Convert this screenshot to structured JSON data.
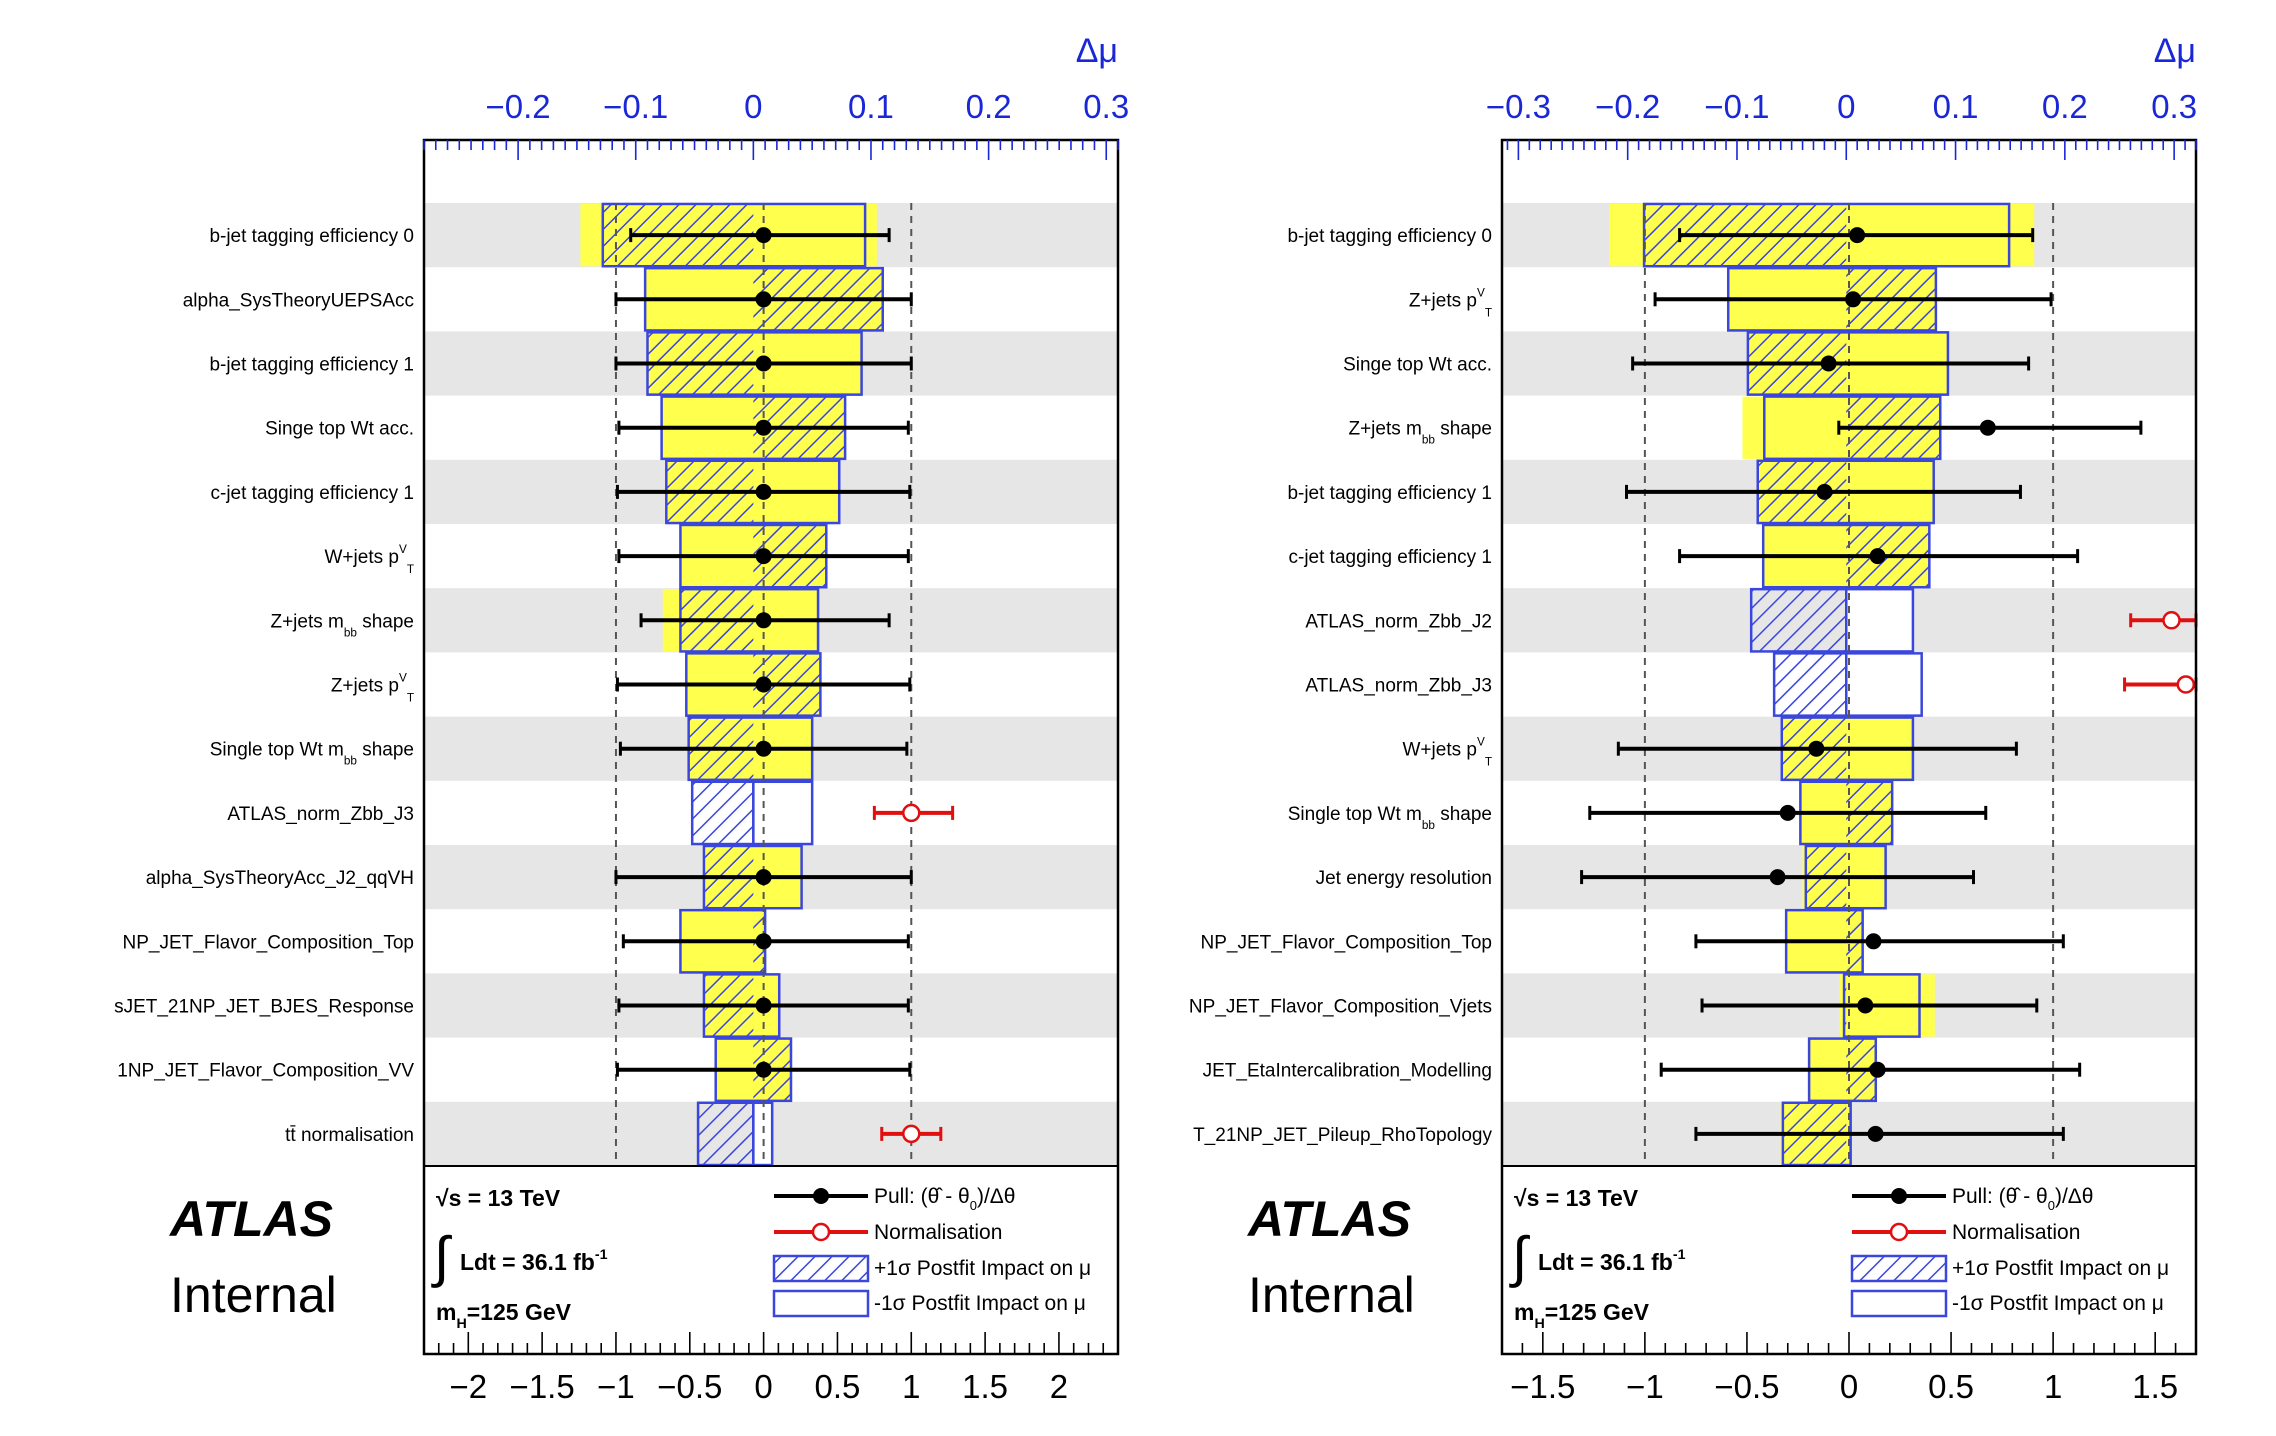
{
  "chart_data": [
    {
      "type": "ranking",
      "top_axis": {
        "label": "Δμ",
        "range": [
          -0.28,
          0.31
        ],
        "ticks": [
          -0.2,
          -0.1,
          0,
          0.1,
          0.2,
          0.3
        ],
        "tick_labels": [
          "−0.2",
          "−0.1",
          "0",
          "0.1",
          "0.2",
          "0.3"
        ],
        "color": "#1a27d6"
      },
      "bottom_axis": {
        "range": [
          -2.3,
          2.4
        ],
        "ticks": [
          -2,
          -1.5,
          -1,
          -0.5,
          0,
          0.5,
          1,
          1.5,
          2
        ],
        "tick_labels": [
          "−2",
          "−1.5",
          "−1",
          "−0.5",
          "0",
          "0.5",
          "1",
          "1.5",
          "2"
        ]
      },
      "parameters": [
        {
          "name": "b-jet tagging efficiency 0",
          "prefit_up": 0.105,
          "prefit_down": -0.147,
          "postfit_up": 0.095,
          "postfit_down": -0.128,
          "pull": 0.0,
          "pull_err_lo": -0.9,
          "pull_err_hi": 0.85,
          "kind": "pull"
        },
        {
          "name": "alpha_SysTheoryUEPSAcc",
          "prefit_up": 0.11,
          "prefit_down": -0.092,
          "postfit_up": 0.11,
          "postfit_down": -0.092,
          "pull": 0.0,
          "pull_err_lo": -1.0,
          "pull_err_hi": 1.0,
          "kind": "pull"
        },
        {
          "name": "b-jet tagging efficiency 1",
          "prefit_up": 0.092,
          "prefit_down": -0.09,
          "postfit_up": 0.092,
          "postfit_down": -0.09,
          "pull": 0.0,
          "pull_err_lo": -1.0,
          "pull_err_hi": 1.0,
          "kind": "pull"
        },
        {
          "name": "Singe top Wt acc.",
          "prefit_up": 0.078,
          "prefit_down": -0.078,
          "postfit_up": 0.078,
          "postfit_down": -0.078,
          "pull": 0.0,
          "pull_err_lo": -0.98,
          "pull_err_hi": 0.98,
          "kind": "pull"
        },
        {
          "name": "c-jet tagging efficiency 1",
          "prefit_up": 0.073,
          "prefit_down": -0.074,
          "postfit_up": 0.073,
          "postfit_down": -0.074,
          "pull": 0.0,
          "pull_err_lo": -0.99,
          "pull_err_hi": 0.99,
          "kind": "pull"
        },
        {
          "name": "W+jets p",
          "sup": "V",
          "sub": "T",
          "prefit_up": 0.062,
          "prefit_down": -0.062,
          "postfit_up": 0.062,
          "postfit_down": -0.062,
          "pull": 0.0,
          "pull_err_lo": -0.98,
          "pull_err_hi": 0.98,
          "kind": "pull"
        },
        {
          "name": "Z+jets m",
          "sub": "bb",
          "suffix": " shape",
          "prefit_up": 0.055,
          "prefit_down": -0.077,
          "postfit_up": 0.055,
          "postfit_down": -0.062,
          "pull": 0.0,
          "pull_err_lo": -0.83,
          "pull_err_hi": 0.85,
          "kind": "pull"
        },
        {
          "name": "Z+jets p",
          "sup": "V",
          "sub": "T",
          "prefit_up": 0.057,
          "prefit_down": -0.057,
          "postfit_up": 0.057,
          "postfit_down": -0.057,
          "pull": 0.0,
          "pull_err_lo": -0.99,
          "pull_err_hi": 0.99,
          "kind": "pull"
        },
        {
          "name": "Single top Wt m",
          "sub": "bb",
          "suffix": " shape",
          "prefit_up": 0.05,
          "prefit_down": -0.055,
          "postfit_up": 0.05,
          "postfit_down": -0.055,
          "pull": 0.0,
          "pull_err_lo": -0.97,
          "pull_err_hi": 0.97,
          "kind": "pull"
        },
        {
          "name": "ATLAS_norm_Zbb_J3",
          "prefit_up": null,
          "prefit_down": null,
          "postfit_up": 0.05,
          "postfit_down": -0.052,
          "pull": 1.0,
          "pull_err_lo": 0.75,
          "pull_err_hi": 1.28,
          "kind": "norm"
        },
        {
          "name": "alpha_SysTheoryAcc_J2_qqVH",
          "prefit_up": 0.041,
          "prefit_down": -0.042,
          "postfit_up": 0.041,
          "postfit_down": -0.042,
          "pull": 0.0,
          "pull_err_lo": -1.0,
          "pull_err_hi": 1.0,
          "kind": "pull"
        },
        {
          "name": "NP_JET_Flavor_Composition_Top",
          "prefit_up": 0.01,
          "prefit_down": -0.062,
          "postfit_up": 0.01,
          "postfit_down": -0.062,
          "pull": 0.0,
          "pull_err_lo": -0.95,
          "pull_err_hi": 0.98,
          "kind": "pull"
        },
        {
          "name": "sJET_21NP_JET_BJES_Response",
          "prefit_up": 0.022,
          "prefit_down": -0.042,
          "postfit_up": 0.022,
          "postfit_down": -0.042,
          "pull": 0.0,
          "pull_err_lo": -0.98,
          "pull_err_hi": 0.98,
          "kind": "pull"
        },
        {
          "name": "1NP_JET_Flavor_Composition_VV",
          "prefit_up": 0.032,
          "prefit_down": -0.032,
          "postfit_up": 0.032,
          "postfit_down": -0.032,
          "pull": 0.0,
          "pull_err_lo": -0.99,
          "pull_err_hi": 0.99,
          "kind": "pull"
        },
        {
          "name": "tt̄ normalisation",
          "prefit_up": null,
          "prefit_down": null,
          "postfit_up": 0.016,
          "postfit_down": -0.047,
          "pull": 1.0,
          "pull_err_lo": 0.8,
          "pull_err_hi": 1.2,
          "kind": "norm"
        }
      ],
      "legend": [
        {
          "label": "Pull: (θ̂ - θ",
          "sub": "0",
          "tail": ")/Δθ",
          "kind": "pull"
        },
        {
          "label": "Normalisation",
          "kind": "norm"
        },
        {
          "label": "+1σ Postfit Impact on μ",
          "kind": "hatch"
        },
        {
          "label": "-1σ Postfit Impact on μ",
          "kind": "open"
        }
      ],
      "info": {
        "sqrt_s": "√s = 13 TeV",
        "lumi": "Ldt = 36.1 fb",
        "lumi_sup": "-1",
        "mass": "m",
        "mass_sub": "H",
        "mass_tail": "=125 GeV"
      },
      "atlas_label": "ATLAS",
      "atlas_sublabel": "Internal"
    },
    {
      "type": "ranking",
      "top_axis": {
        "label": "Δμ",
        "range": [
          -0.315,
          0.32
        ],
        "ticks": [
          -0.3,
          -0.2,
          -0.1,
          0,
          0.1,
          0.2,
          0.3
        ],
        "tick_labels": [
          "−0.3",
          "−0.2",
          "−0.1",
          "0",
          "0.1",
          "0.2",
          "0.3"
        ],
        "color": "#1a27d6"
      },
      "bottom_axis": {
        "range": [
          -1.7,
          1.7
        ],
        "ticks": [
          -1.5,
          -1,
          -0.5,
          0,
          0.5,
          1,
          1.5
        ],
        "tick_labels": [
          "−1.5",
          "−1",
          "−0.5",
          "0",
          "0.5",
          "1",
          "1.5"
        ]
      },
      "parameters": [
        {
          "name": "b-jet tagging efficiency 0",
          "prefit_up": 0.172,
          "prefit_down": -0.217,
          "postfit_up": 0.149,
          "postfit_down": -0.185,
          "pull": 0.04,
          "pull_err_lo": -0.83,
          "pull_err_hi": 0.9,
          "kind": "pull"
        },
        {
          "name": "Z+jets p",
          "sup": "V",
          "sub": "T",
          "prefit_up": 0.082,
          "prefit_down": -0.108,
          "postfit_up": 0.082,
          "postfit_down": -0.108,
          "pull": 0.02,
          "pull_err_lo": -0.95,
          "pull_err_hi": 0.99,
          "kind": "pull"
        },
        {
          "name": "Singe top Wt acc.",
          "prefit_up": 0.093,
          "prefit_down": -0.09,
          "postfit_up": 0.093,
          "postfit_down": -0.09,
          "pull": -0.1,
          "pull_err_lo": -1.06,
          "pull_err_hi": 0.88,
          "kind": "pull"
        },
        {
          "name": "Z+jets m",
          "sub": "bb",
          "suffix": " shape",
          "prefit_up": 0.086,
          "prefit_down": -0.095,
          "postfit_up": 0.086,
          "postfit_down": -0.075,
          "pull": 0.68,
          "pull_err_lo": -0.05,
          "pull_err_hi": 1.43,
          "kind": "pull"
        },
        {
          "name": "b-jet tagging efficiency 1",
          "prefit_up": 0.08,
          "prefit_down": -0.081,
          "postfit_up": 0.08,
          "postfit_down": -0.081,
          "pull": -0.12,
          "pull_err_lo": -1.09,
          "pull_err_hi": 0.84,
          "kind": "pull"
        },
        {
          "name": "c-jet tagging efficiency 1",
          "prefit_up": 0.076,
          "prefit_down": -0.076,
          "postfit_up": 0.076,
          "postfit_down": -0.076,
          "pull": 0.14,
          "pull_err_lo": -0.83,
          "pull_err_hi": 1.12,
          "kind": "pull"
        },
        {
          "name": "ATLAS_norm_Zbb_J2",
          "prefit_up": null,
          "prefit_down": null,
          "postfit_up": 0.061,
          "postfit_down": -0.087,
          "pull": 1.58,
          "pull_err_lo": 1.38,
          "pull_err_hi": 1.7,
          "kind": "norm"
        },
        {
          "name": "ATLAS_norm_Zbb_J3",
          "prefit_up": null,
          "prefit_down": null,
          "postfit_up": 0.069,
          "postfit_down": -0.066,
          "pull": 1.65,
          "pull_err_lo": 1.35,
          "pull_err_hi": 1.7,
          "kind": "norm"
        },
        {
          "name": "W+jets p",
          "sup": "V",
          "sub": "T",
          "prefit_up": 0.061,
          "prefit_down": -0.059,
          "postfit_up": 0.061,
          "postfit_down": -0.059,
          "pull": -0.16,
          "pull_err_lo": -1.13,
          "pull_err_hi": 0.82,
          "kind": "pull"
        },
        {
          "name": "Single top Wt m",
          "sub": "bb",
          "suffix": " shape",
          "prefit_up": 0.042,
          "prefit_down": -0.042,
          "postfit_up": 0.042,
          "postfit_down": -0.042,
          "pull": -0.3,
          "pull_err_lo": -1.27,
          "pull_err_hi": 0.67,
          "kind": "pull"
        },
        {
          "name": "Jet energy resolution",
          "prefit_up": 0.036,
          "prefit_down": -0.04,
          "postfit_up": 0.036,
          "postfit_down": -0.037,
          "pull": -0.35,
          "pull_err_lo": -1.31,
          "pull_err_hi": 0.61,
          "kind": "pull"
        },
        {
          "name": "NP_JET_Flavor_Composition_Top",
          "prefit_up": 0.015,
          "prefit_down": -0.055,
          "postfit_up": 0.015,
          "postfit_down": -0.055,
          "pull": 0.12,
          "pull_err_lo": -0.75,
          "pull_err_hi": 1.05,
          "kind": "pull"
        },
        {
          "name": "NP_JET_Flavor_Composition_Vjets",
          "prefit_up": 0.081,
          "prefit_down": -0.006,
          "postfit_up": 0.067,
          "postfit_down": -0.002,
          "pull": 0.08,
          "pull_err_lo": -0.72,
          "pull_err_hi": 0.92,
          "kind": "pull"
        },
        {
          "name": "JET_EtaIntercalibration_Modelling",
          "prefit_up": 0.027,
          "prefit_down": -0.034,
          "postfit_up": 0.027,
          "postfit_down": -0.034,
          "pull": 0.14,
          "pull_err_lo": -0.92,
          "pull_err_hi": 1.13,
          "kind": "pull"
        },
        {
          "name": "T_21NP_JET_Pileup_RhoTopology",
          "prefit_up": 0.004,
          "prefit_down": -0.06,
          "postfit_up": 0.004,
          "postfit_down": -0.058,
          "pull": 0.13,
          "pull_err_lo": -0.75,
          "pull_err_hi": 1.05,
          "kind": "pull"
        }
      ],
      "legend": [
        {
          "label": "Pull: (θ̂ - θ",
          "sub": "0",
          "tail": ")/Δθ",
          "kind": "pull"
        },
        {
          "label": "Normalisation",
          "kind": "norm"
        },
        {
          "label": "+1σ Postfit Impact on μ",
          "kind": "hatch"
        },
        {
          "label": "-1σ Postfit Impact on μ",
          "kind": "open"
        }
      ],
      "info": {
        "sqrt_s": "√s = 13 TeV",
        "lumi": "Ldt = 36.1 fb",
        "lumi_sup": "-1",
        "mass": "m",
        "mass_sub": "H",
        "mass_tail": "=125 GeV"
      },
      "atlas_label": "ATLAS",
      "atlas_sublabel": "Internal"
    }
  ],
  "colors": {
    "prefit_fill": "#ffff4d",
    "postfit_edge": "#3a46dc",
    "top_axis": "#1a27d6",
    "pull": "#000000",
    "norm": "#e01010",
    "row_shade": "#e6e6e6",
    "frame": "#000000"
  }
}
